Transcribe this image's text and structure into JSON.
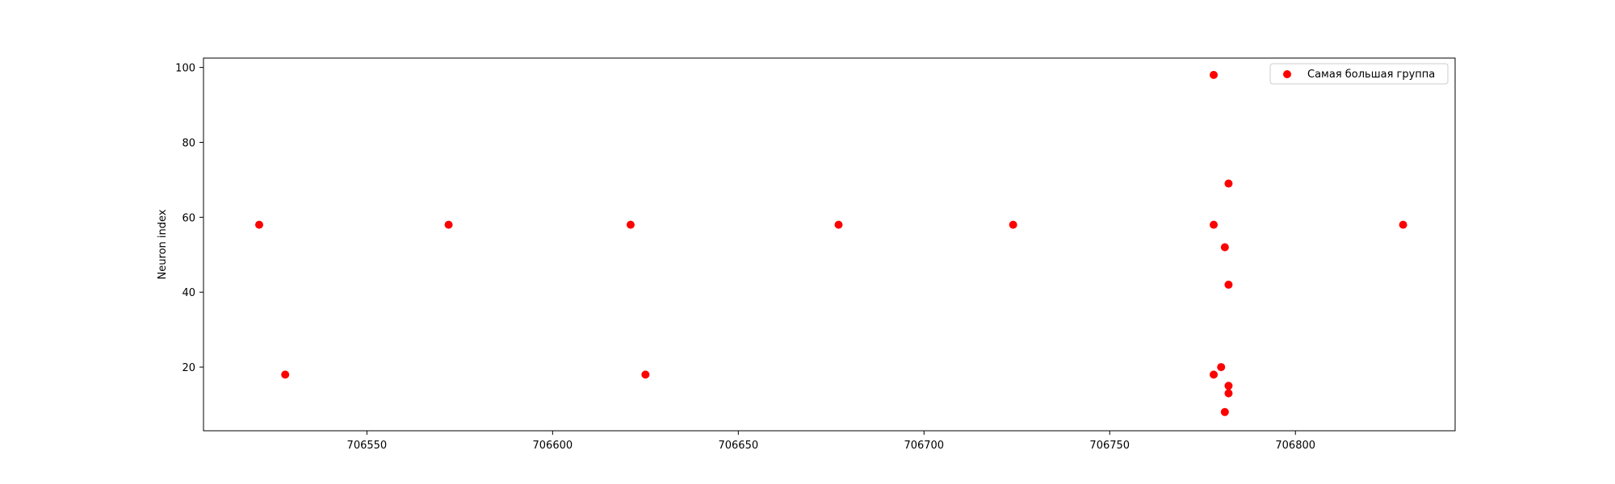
{
  "chart_data": {
    "type": "scatter",
    "title": "",
    "xlabel": "",
    "ylabel": "Neuron index",
    "xlim": [
      706506,
      706843
    ],
    "ylim": [
      3,
      102.5
    ],
    "xticks": [
      706550,
      706600,
      706650,
      706700,
      706750,
      706800
    ],
    "yticks": [
      20,
      40,
      60,
      80,
      100
    ],
    "grid": false,
    "legend_position": "top-right",
    "series": [
      {
        "name": "Самая большая группа",
        "color": "#ff0000",
        "x": [
          706521,
          706528,
          706572,
          706621,
          706625,
          706677,
          706724,
          706778,
          706778,
          706778,
          706780,
          706781,
          706781,
          706782,
          706782,
          706782,
          706782,
          706829
        ],
        "y": [
          58,
          18,
          58,
          58,
          18,
          58,
          58,
          98,
          58,
          18,
          20,
          52,
          8,
          69,
          42,
          15,
          13,
          58
        ]
      }
    ]
  }
}
